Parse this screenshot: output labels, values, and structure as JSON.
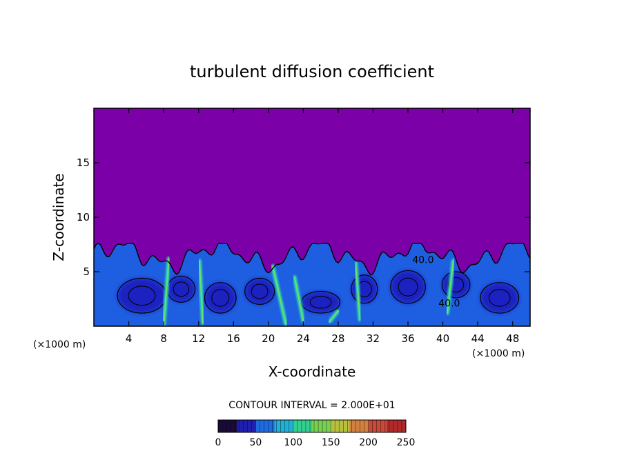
{
  "chart_data": {
    "type": "heatmap",
    "title": "turbulent diffusion coefficient",
    "xlabel": "X-coordinate",
    "ylabel": "Z-coordinate",
    "x_units_label": "(×1000 m)",
    "x_units_label_right": "(×1000 m)",
    "xlim": [
      0,
      50
    ],
    "ylim": [
      0,
      20
    ],
    "x_ticks": [
      4,
      8,
      12,
      16,
      20,
      24,
      28,
      32,
      36,
      40,
      44,
      48
    ],
    "y_ticks": [
      5,
      10,
      15
    ],
    "contour_interval_text": "CONTOUR INTERVAL = 2.000E+01",
    "contour_labels": [
      "40.0",
      "40.0"
    ],
    "colorbar": {
      "min": 0,
      "max": 250,
      "tick_labels": [
        "0",
        "50",
        "100",
        "150",
        "200",
        "250"
      ],
      "colors": [
        "#1a0a3a",
        "#1f1fb0",
        "#1e6be0",
        "#22b0d8",
        "#33d090",
        "#78d050",
        "#b8c040",
        "#d08040",
        "#c84a3a",
        "#b02a2a"
      ]
    },
    "background_value_color": "#7b00a8",
    "boundary_layer_top_z": 6.5,
    "grid": false
  }
}
